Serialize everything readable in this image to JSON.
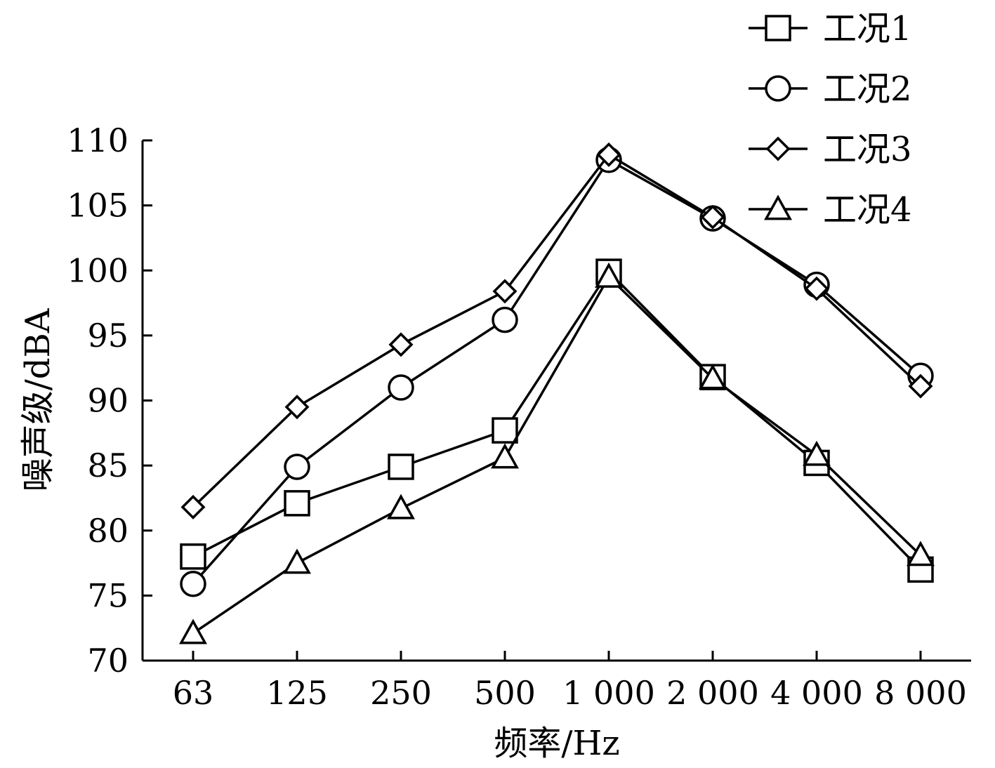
{
  "chart_data": {
    "type": "line",
    "title": "",
    "xlabel": "频率/Hz",
    "ylabel": "噪声级/dBA",
    "categories": [
      "63",
      "125",
      "250",
      "500",
      "1 000",
      "2 000",
      "4 000",
      "8 000"
    ],
    "ylim": [
      70,
      110
    ],
    "yticks": [
      "70",
      "75",
      "80",
      "85",
      "90",
      "95",
      "100",
      "105",
      "110"
    ],
    "grid": false,
    "legend_position": "top-right",
    "series": [
      {
        "name": "工况1",
        "marker": "square",
        "values": [
          78.0,
          82.1,
          84.9,
          87.7,
          99.9,
          91.8,
          85.2,
          77.0
        ]
      },
      {
        "name": "工况2",
        "marker": "circle",
        "values": [
          75.9,
          84.9,
          91.0,
          96.2,
          108.5,
          104.0,
          98.9,
          91.9
        ]
      },
      {
        "name": "工况3",
        "marker": "diamond",
        "values": [
          81.8,
          89.5,
          94.3,
          98.4,
          108.9,
          104.1,
          98.6,
          91.1
        ]
      },
      {
        "name": "工况4",
        "marker": "triangle",
        "values": [
          72.1,
          77.5,
          81.7,
          85.6,
          99.5,
          91.7,
          85.8,
          78.1
        ]
      }
    ]
  }
}
